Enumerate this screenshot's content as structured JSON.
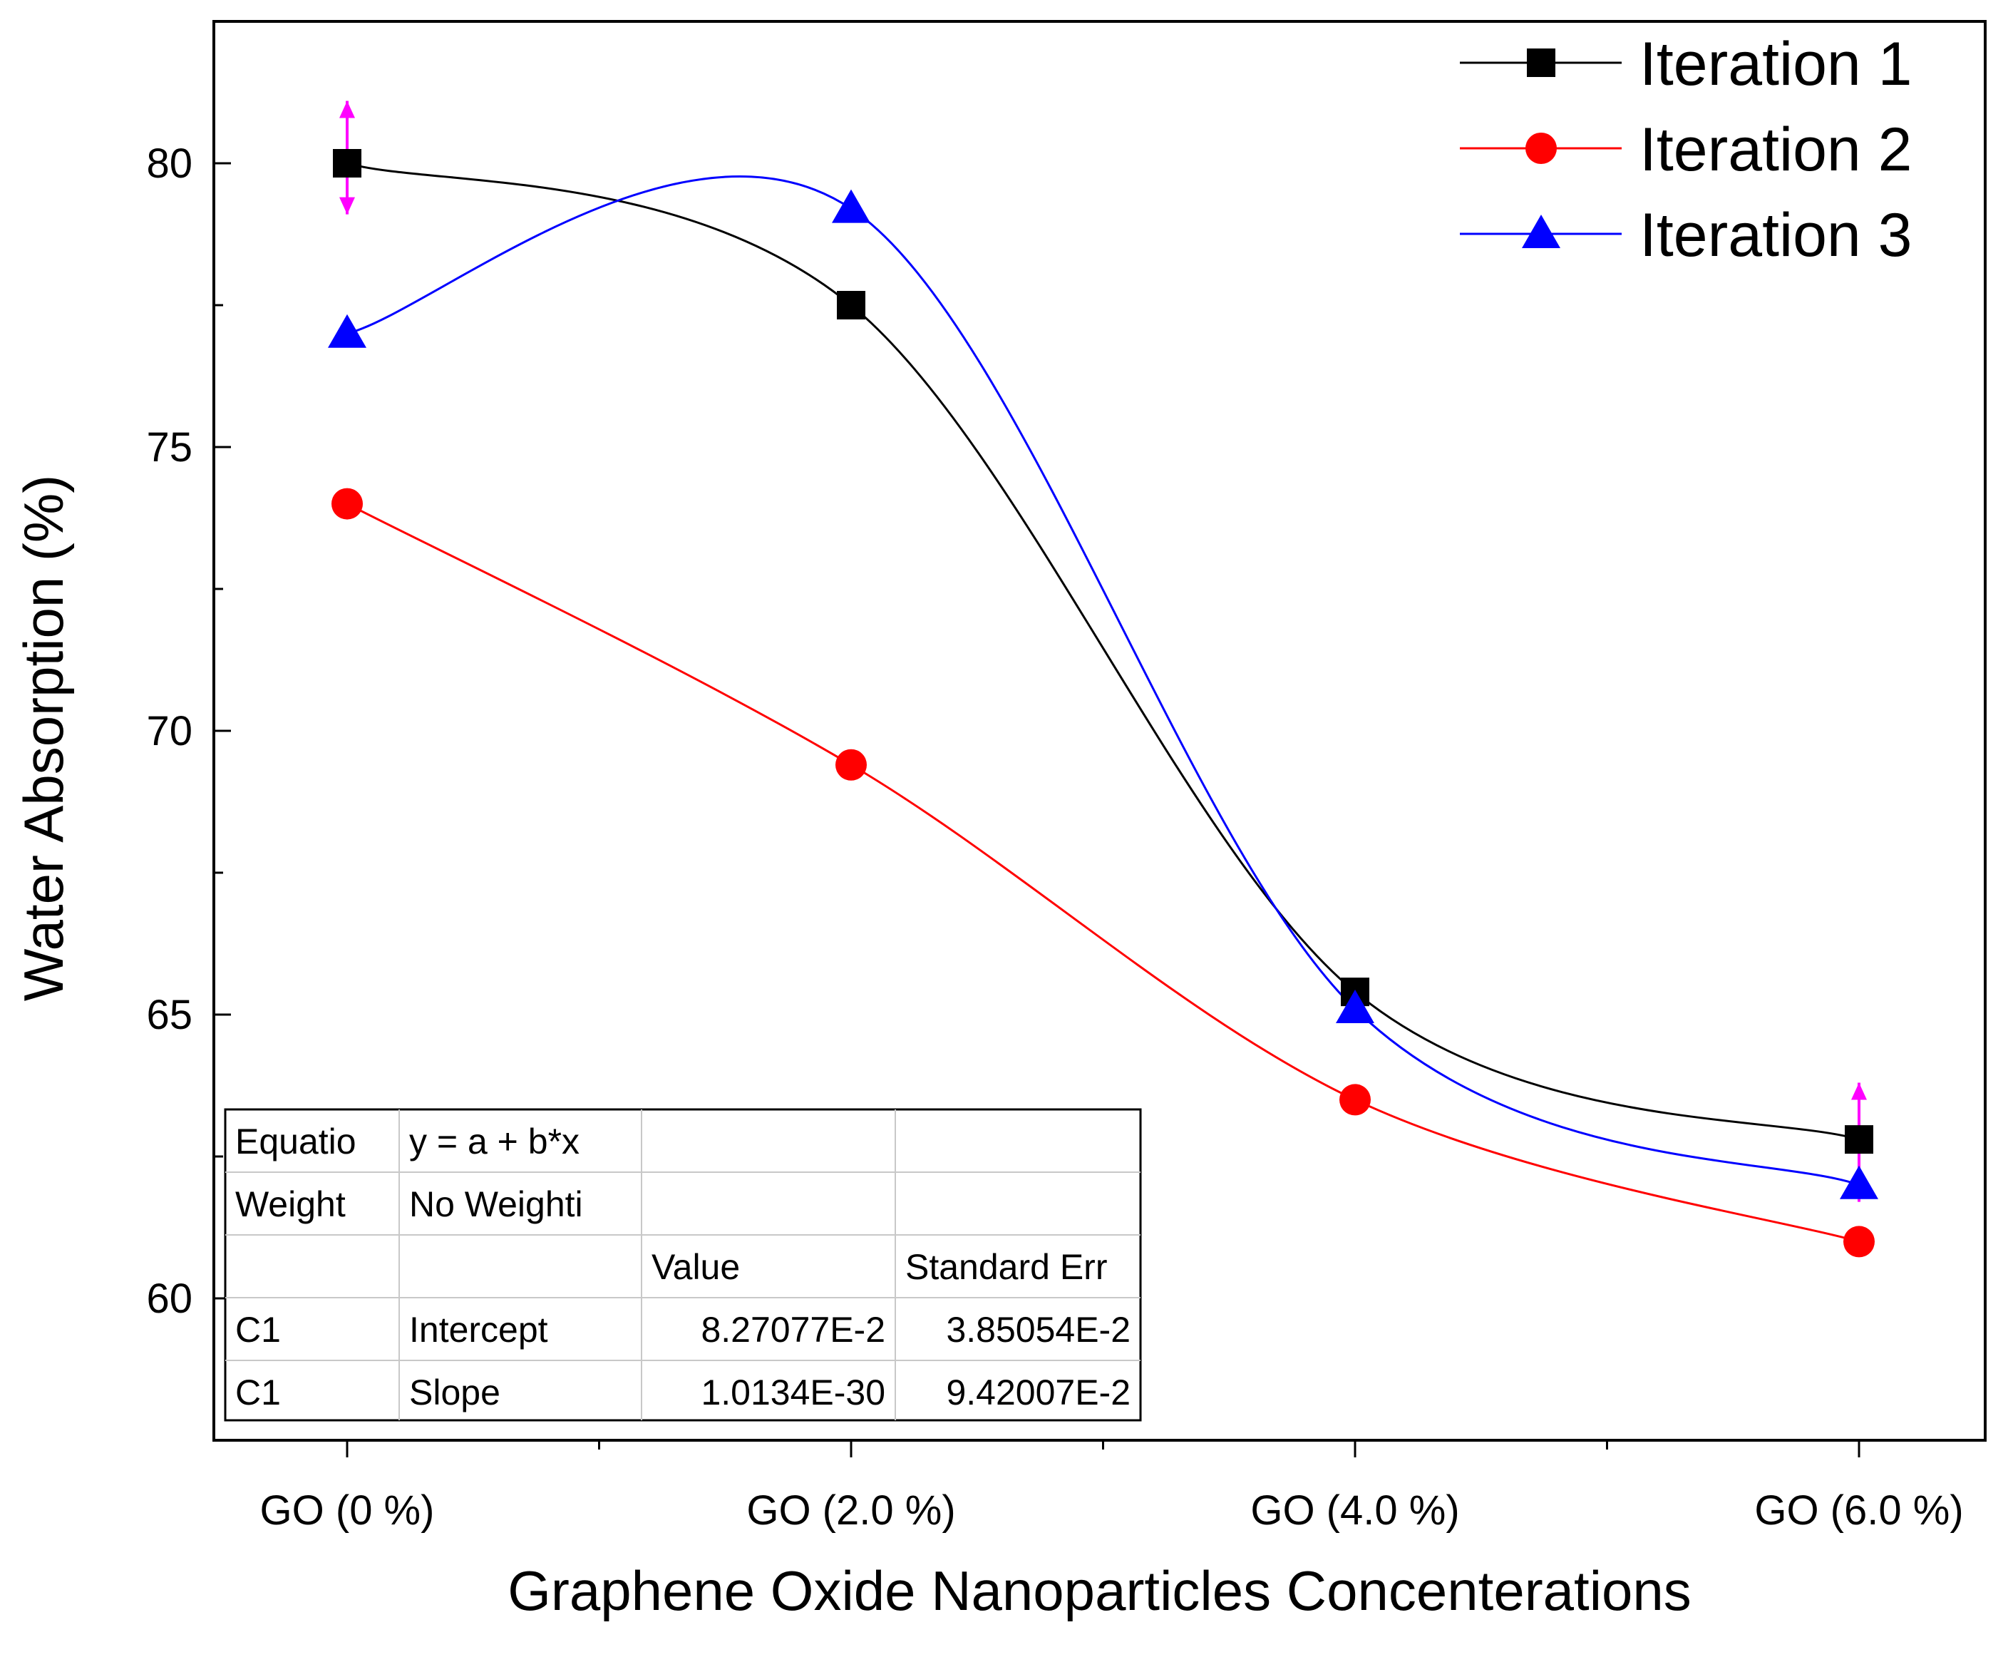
{
  "chart_data": {
    "type": "line",
    "title": "",
    "xlabel": "Graphene Oxide Nanoparticles Concenterations",
    "ylabel": "Water Absorption (%)",
    "categories": [
      "GO (0 %)",
      "GO (2.0 %)",
      "GO (4.0 %)",
      "GO (6.0 %)"
    ],
    "ylim": [
      57.5,
      82.5
    ],
    "yticks": [
      60,
      65,
      70,
      75,
      80
    ],
    "legend_position": "top-right",
    "series": [
      {
        "name": "Iteration 1",
        "color": "#000000",
        "marker": "square",
        "values": [
          80.0,
          77.5,
          65.4,
          62.8
        ]
      },
      {
        "name": "Iteration 2",
        "color": "#ff0000",
        "marker": "circle",
        "values": [
          74.0,
          69.4,
          63.5,
          61.0
        ]
      },
      {
        "name": "Iteration 3",
        "color": "#0000ff",
        "marker": "triangle",
        "values": [
          77.0,
          79.2,
          65.1,
          62.0
        ]
      }
    ],
    "error_bars": {
      "color": "#ff00ff",
      "points": [
        {
          "category": "GO (0 %)",
          "center": 80.0,
          "low": 79.1,
          "high": 81.1
        },
        {
          "category": "GO (6.0 %)",
          "center": 62.8,
          "low": 61.7,
          "high": 63.8
        }
      ]
    },
    "fit_table": {
      "rows": [
        [
          "Equatio",
          "y = a + b*x",
          "",
          ""
        ],
        [
          "Weight",
          "No Weighti",
          "",
          ""
        ],
        [
          "",
          "",
          "Value",
          "Standard Err"
        ],
        [
          "C1",
          "Intercept",
          "8.27077E-2",
          "3.85054E-2"
        ],
        [
          "C1",
          "Slope",
          "1.0134E-30",
          "9.42007E-2"
        ]
      ]
    }
  }
}
